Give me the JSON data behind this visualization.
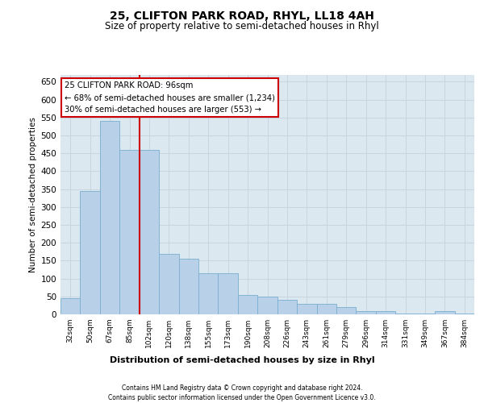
{
  "title": "25, CLIFTON PARK ROAD, RHYL, LL18 4AH",
  "subtitle": "Size of property relative to semi-detached houses in Rhyl",
  "xlabel": "Distribution of semi-detached houses by size in Rhyl",
  "ylabel": "Number of semi-detached properties",
  "categories": [
    "32sqm",
    "50sqm",
    "67sqm",
    "85sqm",
    "102sqm",
    "120sqm",
    "138sqm",
    "155sqm",
    "173sqm",
    "190sqm",
    "208sqm",
    "226sqm",
    "243sqm",
    "261sqm",
    "279sqm",
    "296sqm",
    "314sqm",
    "331sqm",
    "349sqm",
    "367sqm",
    "384sqm"
  ],
  "values": [
    45,
    345,
    540,
    460,
    460,
    170,
    155,
    115,
    115,
    55,
    50,
    40,
    30,
    30,
    20,
    10,
    8,
    3,
    3,
    8,
    3
  ],
  "bar_color": "#b8d0e8",
  "bar_edge_color": "#7aaed0",
  "annotation_title": "25 CLIFTON PARK ROAD: 96sqm",
  "annotation_line1": "← 68% of semi-detached houses are smaller (1,234)",
  "annotation_line2": "30% of semi-detached houses are larger (553) →",
  "red_line_color": "#cc0000",
  "annotation_box_color": "#ffffff",
  "annotation_box_edge": "#cc0000",
  "grid_color": "#c8d4e0",
  "bg_color": "#dce8f0",
  "ylim": [
    0,
    670
  ],
  "yticks": [
    0,
    50,
    100,
    150,
    200,
    250,
    300,
    350,
    400,
    450,
    500,
    550,
    600,
    650
  ],
  "red_line_x": 3.5,
  "footer_line1": "Contains HM Land Registry data © Crown copyright and database right 2024.",
  "footer_line2": "Contains public sector information licensed under the Open Government Licence v3.0."
}
